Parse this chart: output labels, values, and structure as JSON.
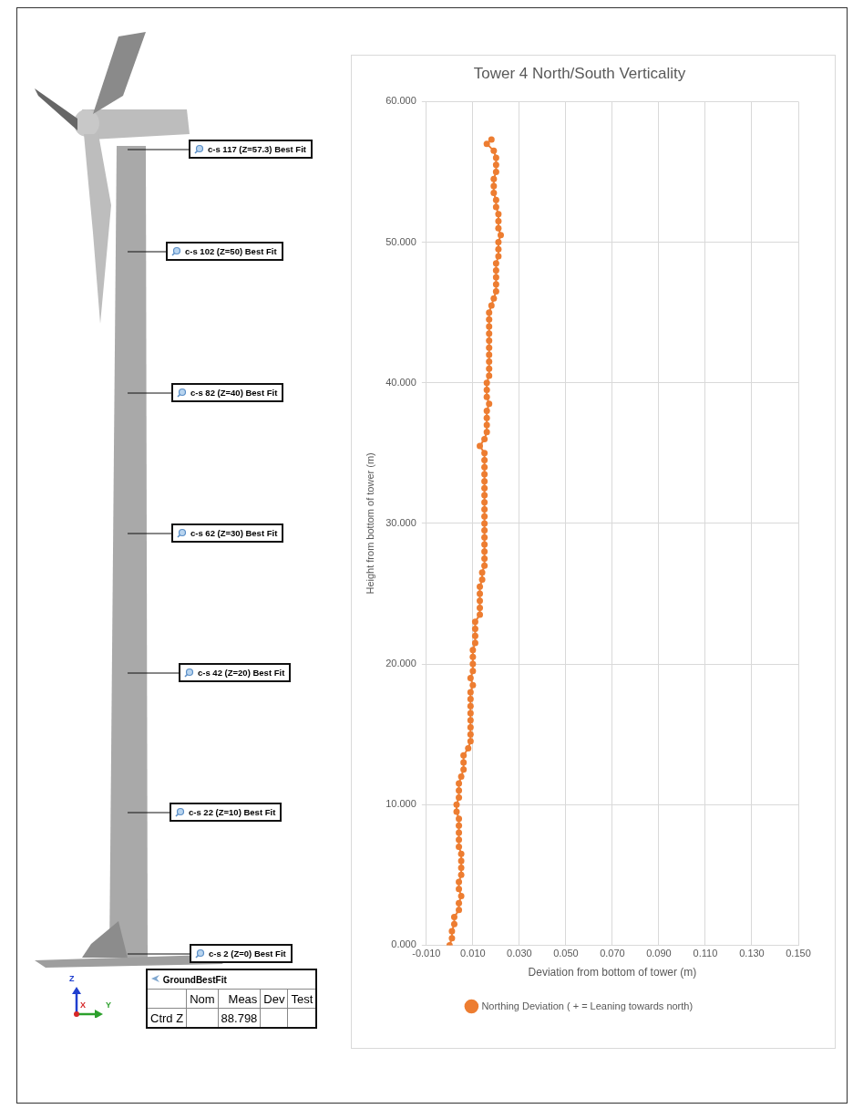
{
  "chart_data": [
    {
      "type": "other",
      "annotations": [
        "c-s 117 (Z=57.3) Best Fit",
        "c-s 102 (Z=50) Best Fit",
        "c-s 82 (Z=40) Best Fit",
        "c-s 62 (Z=30) Best Fit",
        "c-s 42 (Z=20) Best Fit",
        "c-s 22 (Z=10) Best Fit",
        "c-s 2 (Z=0) Best Fit",
        "GroundBestFit",
        "Nom",
        "Meas",
        "Dev",
        "Test",
        "Ctrd Z",
        "88.798",
        "Z",
        "X",
        "Y"
      ]
    },
    {
      "type": "scatter",
      "title": "Tower 4 North/South Verticality",
      "xlabel": "Deviation from bottom of tower (m)",
      "ylabel": "Height from bottom of tower (m)",
      "xlim": [
        -0.01,
        0.15
      ],
      "xticks": [
        {
          "value": -0.01,
          "label": "-0.010"
        },
        {
          "value": 0.01,
          "label": "0.010"
        },
        {
          "value": 0.03,
          "label": "0.030"
        },
        {
          "value": 0.05,
          "label": "0.050"
        },
        {
          "value": 0.07,
          "label": "0.070"
        },
        {
          "value": 0.09,
          "label": "0.090"
        },
        {
          "value": 0.11,
          "label": "0.110"
        },
        {
          "value": 0.13,
          "label": "0.130"
        },
        {
          "value": 0.15,
          "label": "0.150"
        }
      ],
      "ylim": [
        0,
        60
      ],
      "yticks": [
        {
          "value": 0,
          "label": "0.000"
        },
        {
          "value": 10,
          "label": "10.000"
        },
        {
          "value": 20,
          "label": "20.000"
        },
        {
          "value": 30,
          "label": "30.000"
        },
        {
          "value": 40,
          "label": "40.000"
        },
        {
          "value": 50,
          "label": "50.000"
        },
        {
          "value": 60,
          "label": "60.000"
        }
      ],
      "grid": true,
      "legend": "bottom",
      "marker": "circle",
      "line_style": "solid",
      "series": [
        {
          "name": "Northing Deviation ( + = Leaning towards north)",
          "type": "line",
          "color": "#ed7d31",
          "x": [
            0,
            0.001,
            0.001,
            0.002,
            0.002,
            0.004,
            0.004,
            0.005,
            0.004,
            0.004,
            0.005,
            0.005,
            0.005,
            0.005,
            0.004,
            0.004,
            0.004,
            0.004,
            0.004,
            0.003,
            0.003,
            0.004,
            0.004,
            0.004,
            0.005,
            0.006,
            0.006,
            0.006,
            0.008,
            0.009,
            0.009,
            0.009,
            0.009,
            0.009,
            0.009,
            0.009,
            0.009,
            0.01,
            0.009,
            0.01,
            0.01,
            0.01,
            0.01,
            0.011,
            0.011,
            0.011,
            0.011,
            0.013,
            0.013,
            0.013,
            0.013,
            0.013,
            0.014,
            0.014,
            0.015,
            0.015,
            0.015,
            0.015,
            0.015,
            0.015,
            0.015,
            0.015,
            0.015,
            0.015,
            0.015,
            0.015,
            0.015,
            0.015,
            0.015,
            0.015,
            0.015,
            0.013,
            0.015,
            0.016,
            0.016,
            0.016,
            0.016,
            0.017,
            0.016,
            0.016,
            0.016,
            0.017,
            0.017,
            0.017,
            0.017,
            0.017,
            0.017,
            0.017,
            0.017,
            0.017,
            0.017,
            0.018,
            0.019,
            0.02,
            0.02,
            0.02,
            0.02,
            0.02,
            0.021,
            0.021,
            0.021,
            0.022,
            0.021,
            0.021,
            0.021,
            0.02,
            0.02,
            0.019,
            0.019,
            0.019,
            0.02,
            0.02,
            0.02,
            0.019,
            0.016,
            0.018
          ],
          "values": [
            0,
            0.5,
            1,
            1.5,
            2,
            2.5,
            3,
            3.5,
            4,
            4.5,
            5,
            5.5,
            6,
            6.5,
            7,
            7.5,
            8,
            8.5,
            9,
            9.5,
            10,
            10.5,
            11,
            11.5,
            12,
            12.5,
            13,
            13.5,
            14,
            14.5,
            15,
            15.5,
            16,
            16.5,
            17,
            17.5,
            18,
            18.5,
            19,
            19.5,
            20,
            20.5,
            21,
            21.5,
            22,
            22.5,
            23,
            23.5,
            24,
            24.5,
            25,
            25.5,
            26,
            26.5,
            27,
            27.5,
            28,
            28.5,
            29,
            29.5,
            30,
            30.5,
            31,
            31.5,
            32,
            32.5,
            33,
            33.5,
            34,
            34.5,
            35,
            35.5,
            36,
            36.5,
            37,
            37.5,
            38,
            38.5,
            39,
            39.5,
            40,
            40.5,
            41,
            41.5,
            42,
            42.5,
            43,
            43.5,
            44,
            44.5,
            45,
            45.5,
            46,
            46.5,
            47,
            47.5,
            48,
            48.5,
            49,
            49.5,
            50,
            50.5,
            51,
            51.5,
            52,
            52.5,
            53,
            53.5,
            54,
            54.5,
            55,
            55.5,
            56,
            56.5,
            57,
            57.3
          ]
        }
      ]
    }
  ]
}
